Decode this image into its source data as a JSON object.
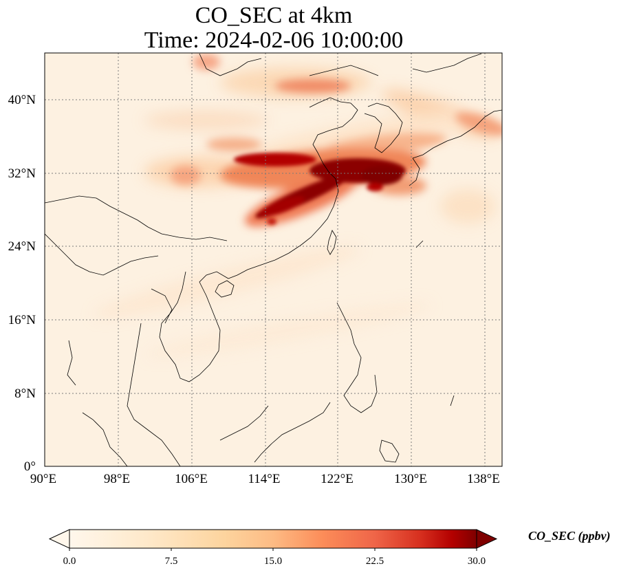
{
  "title": {
    "line1": "CO_SEC at 4km",
    "line2": "Time: 2024-02-06 10:00:00"
  },
  "map": {
    "lon_ticks": [
      "90°E",
      "98°E",
      "106°E",
      "114°E",
      "122°E",
      "130°E",
      "138°E"
    ],
    "lat_ticks": [
      "0°",
      "8°N",
      "16°N",
      "24°N",
      "32°N",
      "40°N"
    ],
    "colormap": "OrRd",
    "colors": {
      "low": "#fff7ec",
      "mid": "#fdbb84",
      "high": "#7f0000",
      "coast": "#000000",
      "grid": "#7a7a7a"
    }
  },
  "colorbar": {
    "label": "CO_SEC (ppbv)",
    "ticks": [
      "0.0",
      "7.5",
      "15.0",
      "22.5",
      "30.0"
    ],
    "min": 0,
    "max": 30,
    "extend": "both"
  }
}
